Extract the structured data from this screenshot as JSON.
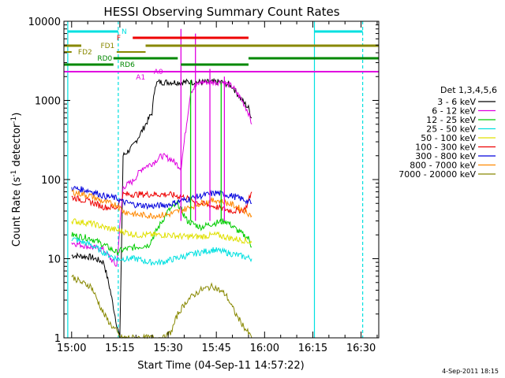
{
  "chart_data": {
    "type": "line",
    "title": "HESSI Observing Summary Count Rates",
    "xlabel": "Start Time (04-Sep-11 14:57:22)",
    "ylabel": "Count Rate (s⁻¹ detector⁻¹)",
    "ylabel_main": "Count Rate (s",
    "ylabel_sup1": "-1",
    "ylabel_mid": " detector",
    "ylabel_sup2": "-1",
    "ylabel_end": ")",
    "scale_y": "log",
    "xlim_minutes": [
      -2.4,
      95.5
    ],
    "ylim": [
      1,
      10000
    ],
    "x_ticks": [
      "15:00",
      "15:15",
      "15:30",
      "15:45",
      "16:00",
      "16:15",
      "16:30"
    ],
    "y_ticks": [
      "1",
      "10",
      "100",
      "1000",
      "10000"
    ],
    "legend_title": "Det 1,3,4,5,6",
    "legend_position": "right",
    "footer_date": "4-Sep-2011 18:15",
    "series": [
      {
        "name": "3 - 6 keV",
        "color": "#000000",
        "key": "s1",
        "points": [
          [
            0,
            11
          ],
          [
            6,
            10.5
          ],
          [
            10,
            9
          ],
          [
            12,
            4
          ],
          [
            14,
            1.5
          ],
          [
            15,
            1
          ],
          [
            16,
            200
          ],
          [
            19,
            260
          ],
          [
            22,
            420
          ],
          [
            25,
            700
          ],
          [
            26,
            1600
          ],
          [
            27,
            1700
          ],
          [
            40,
            1700
          ],
          [
            42,
            1700
          ],
          [
            47,
            1700
          ],
          [
            50,
            1500
          ],
          [
            53,
            1000
          ],
          [
            55,
            800
          ],
          [
            56,
            600
          ]
        ]
      },
      {
        "name": "6 - 12 keV",
        "color": "#e000e0",
        "key": "s2",
        "points": [
          [
            0,
            16
          ],
          [
            6,
            14
          ],
          [
            10,
            13
          ],
          [
            14,
            8
          ],
          [
            16,
            80
          ],
          [
            19,
            95
          ],
          [
            22,
            140
          ],
          [
            25,
            160
          ],
          [
            28,
            200
          ],
          [
            31,
            180
          ],
          [
            34,
            140
          ],
          [
            37,
            1300
          ],
          [
            40,
            1700
          ],
          [
            44,
            1700
          ],
          [
            47,
            1700
          ],
          [
            50,
            1500
          ],
          [
            53,
            1000
          ],
          [
            55,
            700
          ],
          [
            56,
            500
          ]
        ]
      },
      {
        "name": "12 - 25 keV",
        "color": "#00cc00",
        "key": "s3",
        "points": [
          [
            0,
            20
          ],
          [
            6,
            18
          ],
          [
            10,
            15
          ],
          [
            14,
            12
          ],
          [
            16,
            13
          ],
          [
            20,
            14
          ],
          [
            24,
            15
          ],
          [
            27,
            25
          ],
          [
            30,
            40
          ],
          [
            33,
            50
          ],
          [
            36,
            30
          ],
          [
            40,
            25
          ],
          [
            44,
            28
          ],
          [
            48,
            30
          ],
          [
            52,
            22
          ],
          [
            55,
            18
          ],
          [
            56,
            14
          ]
        ]
      },
      {
        "name": "25 - 50 keV",
        "color": "#00e0e0",
        "key": "s4",
        "points": [
          [
            0,
            18
          ],
          [
            6,
            15
          ],
          [
            10,
            12
          ],
          [
            14,
            10
          ],
          [
            16,
            10
          ],
          [
            20,
            10
          ],
          [
            24,
            9
          ],
          [
            28,
            9
          ],
          [
            32,
            10
          ],
          [
            36,
            11
          ],
          [
            40,
            12
          ],
          [
            44,
            13
          ],
          [
            48,
            12
          ],
          [
            52,
            11
          ],
          [
            56,
            10
          ]
        ]
      },
      {
        "name": "50 - 100 keV",
        "color": "#e0e000",
        "key": "s5",
        "points": [
          [
            0,
            30
          ],
          [
            6,
            28
          ],
          [
            10,
            25
          ],
          [
            16,
            22
          ],
          [
            20,
            20
          ],
          [
            25,
            20
          ],
          [
            30,
            20
          ],
          [
            35,
            19
          ],
          [
            40,
            19
          ],
          [
            45,
            20
          ],
          [
            50,
            18
          ],
          [
            54,
            17
          ],
          [
            56,
            16
          ]
        ]
      },
      {
        "name": "100 - 300 keV",
        "color": "#ee0000",
        "key": "s6",
        "points": [
          [
            0,
            60
          ],
          [
            6,
            52
          ],
          [
            10,
            45
          ],
          [
            14,
            44
          ],
          [
            16,
            65
          ],
          [
            20,
            65
          ],
          [
            25,
            65
          ],
          [
            30,
            65
          ],
          [
            35,
            60
          ],
          [
            40,
            50
          ],
          [
            45,
            45
          ],
          [
            50,
            40
          ],
          [
            54,
            42
          ],
          [
            56,
            70
          ]
        ]
      },
      {
        "name": "300 - 800 keV",
        "color": "#0000dd",
        "key": "s7",
        "points": [
          [
            0,
            78
          ],
          [
            6,
            72
          ],
          [
            10,
            62
          ],
          [
            14,
            58
          ],
          [
            16,
            52
          ],
          [
            20,
            48
          ],
          [
            25,
            46
          ],
          [
            30,
            48
          ],
          [
            35,
            55
          ],
          [
            40,
            62
          ],
          [
            45,
            68
          ],
          [
            50,
            62
          ],
          [
            54,
            55
          ],
          [
            56,
            50
          ]
        ]
      },
      {
        "name": "800 - 7000 keV",
        "color": "#ff8800",
        "key": "s8",
        "points": [
          [
            0,
            70
          ],
          [
            6,
            62
          ],
          [
            10,
            52
          ],
          [
            14,
            48
          ],
          [
            16,
            40
          ],
          [
            20,
            36
          ],
          [
            25,
            35
          ],
          [
            30,
            36
          ],
          [
            35,
            42
          ],
          [
            40,
            50
          ],
          [
            45,
            55
          ],
          [
            50,
            48
          ],
          [
            54,
            40
          ],
          [
            56,
            35
          ]
        ]
      },
      {
        "name": "7000 - 20000 keV",
        "color": "#888800",
        "key": "s9",
        "points": [
          [
            0,
            6
          ],
          [
            3,
            5
          ],
          [
            6,
            4.5
          ],
          [
            8,
            3
          ],
          [
            10,
            2
          ],
          [
            12,
            1.5
          ],
          [
            14,
            1.2
          ],
          [
            15,
            1
          ],
          [
            29,
            1
          ],
          [
            31,
            1.2
          ],
          [
            33,
            2
          ],
          [
            36,
            3
          ],
          [
            40,
            4
          ],
          [
            44,
            4.5
          ],
          [
            48,
            3.5
          ],
          [
            51,
            2
          ],
          [
            54,
            1.3
          ],
          [
            56,
            1
          ]
        ]
      }
    ],
    "flags": [
      {
        "label": "N",
        "color": "#00e0e0"
      },
      {
        "label": "F",
        "color": "#ee0000"
      },
      {
        "label": "FD1",
        "color": "#888800"
      },
      {
        "label": "FD2",
        "color": "#888800"
      },
      {
        "label": "RD0",
        "color": "#008800"
      },
      {
        "label": "RD6",
        "color": "#008800"
      },
      {
        "label": "A1",
        "color": "#e000e0"
      },
      {
        "label": "A0",
        "color": "#e000e0"
      }
    ]
  }
}
